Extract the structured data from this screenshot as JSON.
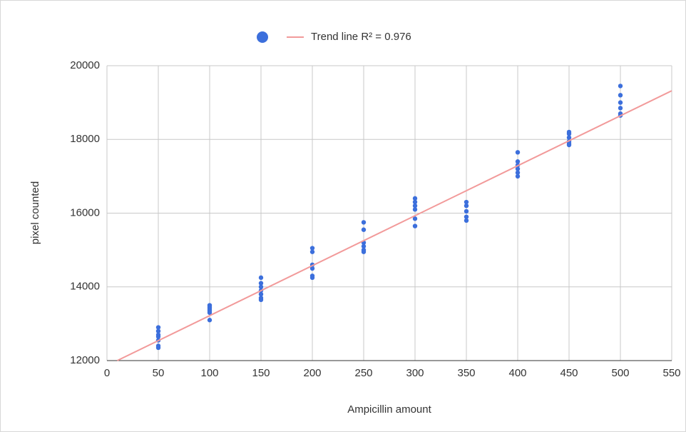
{
  "chart_data": {
    "type": "scatter",
    "x_label": "Ampicillin amount",
    "y_label": "pixel counted",
    "xlim": [
      0,
      550
    ],
    "ylim": [
      12000,
      20000
    ],
    "xticks": [
      0,
      50,
      100,
      150,
      200,
      250,
      300,
      350,
      400,
      450,
      500,
      550
    ],
    "yticks": [
      12000,
      14000,
      16000,
      18000,
      20000
    ],
    "grid": true,
    "legend": "top",
    "series": [
      {
        "color": "#3c6fdc",
        "x": [
          50,
          50,
          50,
          50,
          50,
          50,
          50,
          100,
          100,
          100,
          100,
          100,
          100,
          150,
          150,
          150,
          150,
          150,
          150,
          150,
          200,
          200,
          200,
          200,
          200,
          200,
          250,
          250,
          250,
          250,
          250,
          250,
          300,
          300,
          300,
          300,
          300,
          300,
          350,
          350,
          350,
          350,
          350,
          400,
          400,
          400,
          400,
          400,
          400,
          450,
          450,
          450,
          450,
          450,
          450,
          500,
          500,
          500,
          500,
          500,
          500
        ],
        "values": [
          12900,
          12800,
          12700,
          12650,
          12550,
          12400,
          12350,
          13500,
          13450,
          13400,
          13350,
          13300,
          13100,
          14250,
          14100,
          14000,
          13900,
          13800,
          13700,
          13650,
          15050,
          14950,
          14600,
          14500,
          14300,
          14250,
          15750,
          15550,
          15200,
          15100,
          15000,
          14950,
          16400,
          16300,
          16200,
          16100,
          15850,
          15650,
          16300,
          16200,
          16050,
          15900,
          15800,
          17650,
          17400,
          17300,
          17200,
          17100,
          17000,
          18200,
          18150,
          18050,
          17950,
          17900,
          17850,
          19450,
          19200,
          19000,
          18850,
          18700,
          18650
        ]
      },
      {
        "name": "Trend line R² = 0.976",
        "type": "line",
        "color": "#f29a9a",
        "x": [
          10,
          550
        ],
        "values": [
          12000,
          19320
        ]
      }
    ]
  }
}
